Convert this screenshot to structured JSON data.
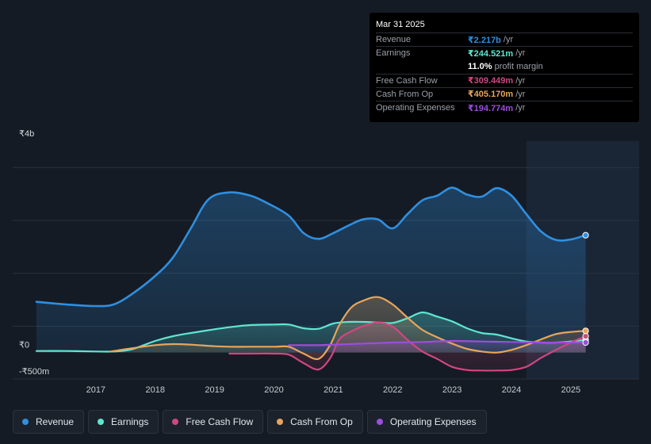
{
  "tooltip": {
    "date": "Mar 31 2025",
    "rows": [
      {
        "label": "Revenue",
        "value": "₹2.217b",
        "unit": "/yr",
        "color": "#2f8fe0"
      },
      {
        "label": "Earnings",
        "value": "₹244.521m",
        "unit": "/yr",
        "color": "#5ee6cf"
      },
      {
        "label": "",
        "value": "11.0%",
        "unit": "profit margin",
        "color": "#ffffff"
      },
      {
        "label": "Free Cash Flow",
        "value": "₹309.449m",
        "unit": "/yr",
        "color": "#d0477f"
      },
      {
        "label": "Cash From Op",
        "value": "₹405.170m",
        "unit": "/yr",
        "color": "#e8a55a"
      },
      {
        "label": "Operating Expenses",
        "value": "₹194.774m",
        "unit": "/yr",
        "color": "#9b4de0"
      }
    ]
  },
  "legend": [
    {
      "label": "Revenue",
      "color": "#2f8fe0"
    },
    {
      "label": "Earnings",
      "color": "#5ee6cf"
    },
    {
      "label": "Free Cash Flow",
      "color": "#d0477f"
    },
    {
      "label": "Cash From Op",
      "color": "#e8a55a"
    },
    {
      "label": "Operating Expenses",
      "color": "#9b4de0"
    }
  ],
  "chart_data": {
    "type": "area",
    "title": "",
    "ylabel": "",
    "y_unit": "billions INR",
    "ylim": [
      -0.5,
      4
    ],
    "y_tick_labels": [
      {
        "value": 4,
        "label": "₹4b"
      },
      {
        "value": 0,
        "label": "₹0"
      },
      {
        "value": -0.5,
        "label": "-₹500m"
      }
    ],
    "x_ticks": [
      {
        "value": 2017,
        "label": "2017"
      },
      {
        "value": 2018,
        "label": "2018"
      },
      {
        "value": 2019,
        "label": "2019"
      },
      {
        "value": 2020,
        "label": "2020"
      },
      {
        "value": 2021,
        "label": "2021"
      },
      {
        "value": 2022,
        "label": "2022"
      },
      {
        "value": 2023,
        "label": "2023"
      },
      {
        "value": 2024,
        "label": "2024"
      },
      {
        "value": 2025,
        "label": "2025"
      }
    ],
    "xlim": [
      2015.6,
      2026.15
    ],
    "highlight_from": 2024.25,
    "series": [
      {
        "name": "Revenue",
        "color": "#2f8fe0",
        "fill": true,
        "x": [
          2016.0,
          2016.5,
          2017.0,
          2017.3,
          2017.6,
          2018.0,
          2018.3,
          2018.6,
          2018.9,
          2019.25,
          2019.6,
          2019.9,
          2020.25,
          2020.5,
          2020.75,
          2021.0,
          2021.25,
          2021.5,
          2021.75,
          2022.0,
          2022.25,
          2022.5,
          2022.75,
          2023.0,
          2023.25,
          2023.5,
          2023.75,
          2024.0,
          2024.25,
          2024.5,
          2024.75,
          2025.0,
          2025.25
        ],
        "y": [
          0.96,
          0.91,
          0.88,
          0.91,
          1.1,
          1.45,
          1.8,
          2.35,
          2.9,
          3.03,
          2.97,
          2.82,
          2.59,
          2.26,
          2.15,
          2.26,
          2.4,
          2.52,
          2.52,
          2.35,
          2.62,
          2.88,
          2.97,
          3.12,
          2.99,
          2.95,
          3.11,
          2.97,
          2.62,
          2.29,
          2.13,
          2.14,
          2.22
        ]
      },
      {
        "name": "Earnings",
        "color": "#5ee6cf",
        "fill": true,
        "x": [
          2016.0,
          2016.5,
          2017.0,
          2017.3,
          2017.6,
          2018.0,
          2018.3,
          2018.6,
          2019.0,
          2019.25,
          2019.6,
          2020.0,
          2020.25,
          2020.5,
          2020.75,
          2021.0,
          2021.25,
          2021.5,
          2021.75,
          2022.0,
          2022.25,
          2022.5,
          2022.75,
          2023.0,
          2023.25,
          2023.5,
          2023.75,
          2024.0,
          2024.25,
          2024.5,
          2024.75,
          2025.0,
          2025.25
        ],
        "y": [
          0.03,
          0.03,
          0.02,
          0.02,
          0.06,
          0.22,
          0.31,
          0.37,
          0.44,
          0.48,
          0.52,
          0.53,
          0.53,
          0.46,
          0.45,
          0.55,
          0.58,
          0.58,
          0.57,
          0.56,
          0.65,
          0.76,
          0.68,
          0.59,
          0.46,
          0.37,
          0.34,
          0.27,
          0.21,
          0.19,
          0.19,
          0.21,
          0.24
        ]
      },
      {
        "name": "Free Cash Flow",
        "color": "#d0477f",
        "fill": true,
        "x": [
          2019.25,
          2019.6,
          2020.0,
          2020.25,
          2020.5,
          2020.75,
          2020.95,
          2021.1,
          2021.3,
          2021.5,
          2021.75,
          2022.0,
          2022.25,
          2022.5,
          2022.75,
          2023.0,
          2023.25,
          2023.5,
          2023.75,
          2024.0,
          2024.25,
          2024.5,
          2024.75,
          2025.0,
          2025.25
        ],
        "y": [
          -0.02,
          -0.02,
          -0.02,
          -0.04,
          -0.2,
          -0.32,
          -0.1,
          0.25,
          0.4,
          0.5,
          0.57,
          0.49,
          0.24,
          0.02,
          -0.12,
          -0.27,
          -0.33,
          -0.34,
          -0.34,
          -0.33,
          -0.27,
          -0.1,
          0.05,
          0.19,
          0.31
        ]
      },
      {
        "name": "Cash From Op",
        "color": "#e8a55a",
        "fill": true,
        "x": [
          2017.25,
          2017.6,
          2018.0,
          2018.3,
          2018.6,
          2019.0,
          2019.25,
          2019.6,
          2020.0,
          2020.25,
          2020.5,
          2020.75,
          2020.95,
          2021.1,
          2021.3,
          2021.5,
          2021.75,
          2022.0,
          2022.25,
          2022.5,
          2022.75,
          2023.0,
          2023.25,
          2023.5,
          2023.75,
          2024.0,
          2024.25,
          2024.5,
          2024.75,
          2025.0,
          2025.25
        ],
        "y": [
          0.02,
          0.08,
          0.14,
          0.16,
          0.15,
          0.12,
          0.11,
          0.11,
          0.11,
          0.11,
          -0.02,
          -0.12,
          0.15,
          0.52,
          0.85,
          0.98,
          1.05,
          0.91,
          0.66,
          0.43,
          0.29,
          0.17,
          0.07,
          0.02,
          0.0,
          0.05,
          0.14,
          0.25,
          0.35,
          0.39,
          0.41
        ]
      },
      {
        "name": "Operating Expenses",
        "color": "#9b4de0",
        "fill": true,
        "x": [
          2020.25,
          2020.5,
          2020.75,
          2021.0,
          2021.5,
          2022.0,
          2022.5,
          2023.0,
          2023.5,
          2024.0,
          2024.5,
          2025.0,
          2025.25
        ],
        "y": [
          0.14,
          0.14,
          0.14,
          0.15,
          0.17,
          0.19,
          0.2,
          0.22,
          0.21,
          0.2,
          0.19,
          0.19,
          0.19
        ]
      }
    ]
  }
}
